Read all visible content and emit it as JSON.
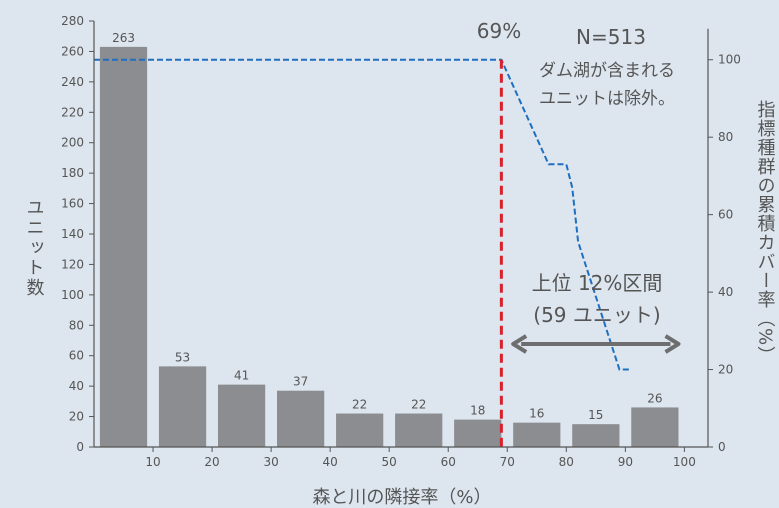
{
  "chart_data": {
    "type": "bar",
    "categories": [
      "0-10",
      "10-20",
      "20-30",
      "30-40",
      "40-50",
      "50-60",
      "60-70",
      "70-80",
      "80-90",
      "90-100"
    ],
    "values": [
      263,
      53,
      41,
      37,
      22,
      22,
      18,
      16,
      15,
      26
    ],
    "xlabel": "森と川の隣接率（%）",
    "ylabel": "ユニット数",
    "y2label": "指標種群の累積カバー率（%）",
    "ylim": [
      0,
      280
    ],
    "y2lim": [
      0,
      110
    ],
    "xlim": [
      0,
      104
    ],
    "x_ticks": [
      10,
      20,
      30,
      40,
      50,
      60,
      70,
      80,
      90,
      100
    ],
    "y_ticks": [
      0,
      20,
      40,
      60,
      80,
      100,
      120,
      140,
      160,
      180,
      200,
      220,
      240,
      260,
      280
    ],
    "y2_ticks": [
      0,
      20,
      40,
      60,
      80,
      100
    ],
    "grid": false,
    "cumulative_coverage_line": {
      "axis": "right",
      "x": [
        0,
        69,
        77,
        80,
        81,
        82,
        89,
        91
      ],
      "y": [
        100,
        100,
        73,
        73,
        67,
        53,
        20,
        20
      ]
    },
    "threshold_line": {
      "x": 69
    },
    "annotations": {
      "threshold_label": "69%",
      "sample_size": "N=513",
      "note_line1": "ダム湖が含まれる",
      "note_line2": "ユニットは除外。",
      "range_line1": "上位 12%区間",
      "range_line2": "(59 ユニット)"
    },
    "range_arrow": {
      "x_start": 71,
      "x_end": 99
    },
    "colors": {
      "bar": "#8c8d91",
      "coverage_line": "#1f6fc0",
      "threshold_line": "#d8212b",
      "arrow": "#6e6e6e",
      "axis": "#555555",
      "text": "#555555"
    }
  }
}
